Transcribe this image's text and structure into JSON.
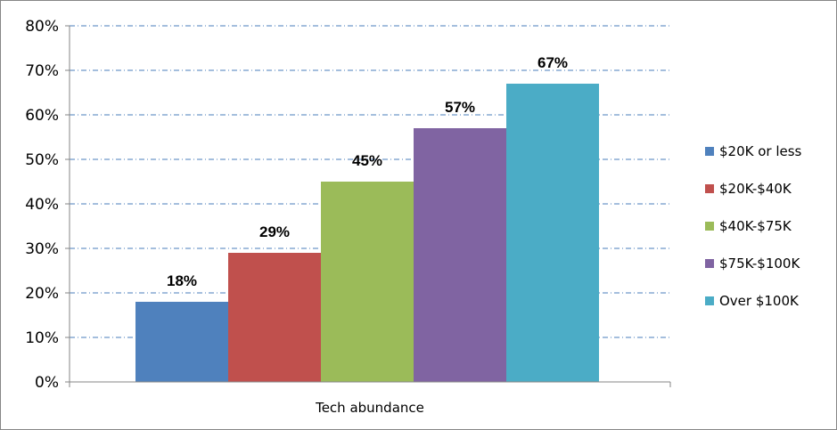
{
  "chart_data": {
    "type": "bar",
    "title": "",
    "xlabel": "",
    "ylabel": "",
    "categories": [
      "Tech abundance"
    ],
    "series": [
      {
        "name": "$20K or less",
        "values": [
          18
        ],
        "label": "18%",
        "color": "#4F81BD"
      },
      {
        "name": "$20K-$40K",
        "values": [
          29
        ],
        "label": "29%",
        "color": "#C0504D"
      },
      {
        "name": "$40K-$75K",
        "values": [
          45
        ],
        "label": "45%",
        "color": "#9BBB59"
      },
      {
        "name": "$75K-$100K",
        "values": [
          57
        ],
        "label": "57%",
        "color": "#8064A2"
      },
      {
        "name": "Over $100K",
        "values": [
          67
        ],
        "label": "67%",
        "color": "#4BACC6"
      }
    ],
    "ylim": [
      0,
      80
    ],
    "yticks": [
      "0%",
      "10%",
      "20%",
      "30%",
      "40%",
      "50%",
      "60%",
      "70%",
      "80%"
    ],
    "grid": true,
    "legend": "right"
  }
}
